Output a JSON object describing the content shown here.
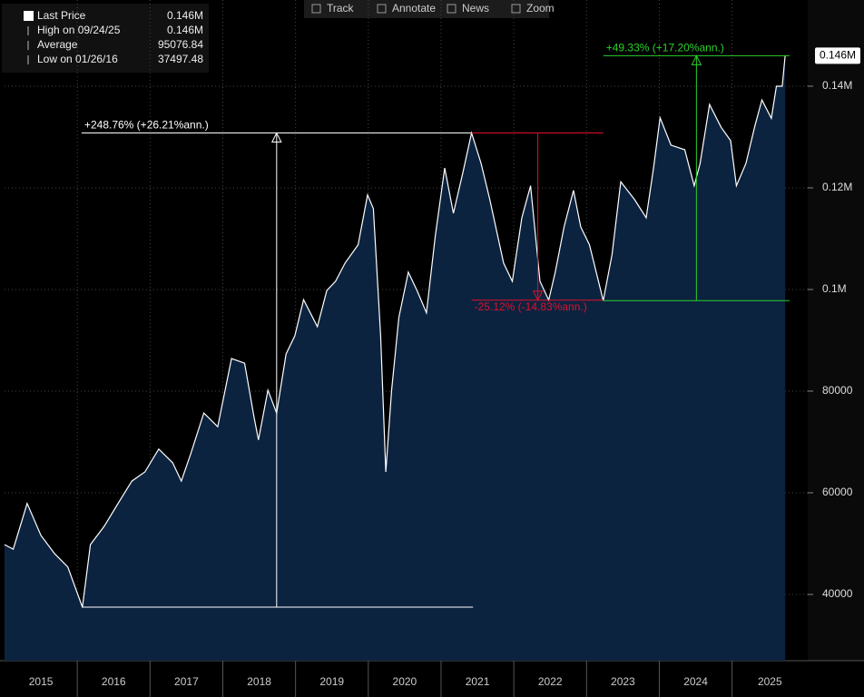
{
  "chart_data": {
    "type": "area",
    "toolbar": [
      "Track",
      "Annotate",
      "News",
      "Zoom"
    ],
    "legend": [
      {
        "label": "Last Price",
        "value": {
          "value": 146000,
          "label": "0.146M"
        }
      },
      {
        "label": "High on 09/24/25",
        "value": {
          "value": 146000,
          "label": "0.146M"
        }
      },
      {
        "label": "Average",
        "value": 95076.84
      },
      {
        "label": "Low on 01/26/16",
        "value": 37497.48
      }
    ],
    "last_price_tag": {
      "value": 146000,
      "label": "0.146M"
    },
    "line_color": "#ffffff",
    "fill_color": "#0c2340",
    "grid": true,
    "xlim": [
      2015,
      2026.04
    ],
    "xticks": [
      {
        "value": 2015,
        "label": "2015"
      },
      {
        "value": 2016,
        "label": "2016"
      },
      {
        "value": 2017,
        "label": "2017"
      },
      {
        "value": 2018,
        "label": "2018"
      },
      {
        "value": 2019,
        "label": "2019"
      },
      {
        "value": 2020,
        "label": "2020"
      },
      {
        "value": 2021,
        "label": "2021"
      },
      {
        "value": 2022,
        "label": "2022"
      },
      {
        "value": 2023,
        "label": "2023"
      },
      {
        "value": 2024,
        "label": "2024"
      },
      {
        "value": 2025,
        "label": "2025"
      }
    ],
    "ylim": [
      26960,
      156960
    ],
    "yticks": [
      40000,
      60000,
      80000,
      {
        "value": 100000,
        "label": "0.1M"
      },
      {
        "value": 120000,
        "label": "0.12M"
      },
      {
        "value": 140000,
        "label": "0.14M"
      }
    ],
    "x": [
      2015.0,
      2015.12,
      2015.31,
      2015.5,
      2015.69,
      2015.87,
      2016.07,
      2016.18,
      2016.37,
      2016.56,
      2016.75,
      2016.93,
      2017.12,
      2017.31,
      2017.43,
      2017.56,
      2017.74,
      2017.93,
      2018.12,
      2018.3,
      2018.43,
      2018.49,
      2018.62,
      2018.74,
      2018.87,
      2018.99,
      2019.11,
      2019.3,
      2019.43,
      2019.55,
      2019.68,
      2019.86,
      2019.99,
      2020.07,
      2020.17,
      2020.24,
      2020.32,
      2020.42,
      2020.55,
      2020.67,
      2020.8,
      2020.92,
      2021.05,
      2021.17,
      2021.3,
      2021.42,
      2021.55,
      2021.67,
      2021.86,
      2021.98,
      2022.11,
      2022.23,
      2022.36,
      2022.48,
      2022.57,
      2022.69,
      2022.82,
      2022.92,
      2023.04,
      2023.23,
      2023.35,
      2023.47,
      2023.66,
      2023.82,
      2023.92,
      2024.01,
      2024.16,
      2024.35,
      2024.48,
      2024.56,
      2024.69,
      2024.85,
      2024.98,
      2025.06,
      2025.19,
      2025.31,
      2025.41,
      2025.54,
      2025.61,
      2025.69,
      2025.73
    ],
    "values": [
      49800,
      48900,
      57900,
      51600,
      48000,
      45400,
      37497.48,
      49800,
      53400,
      57900,
      62300,
      64100,
      68600,
      65900,
      62300,
      67700,
      75700,
      73000,
      86400,
      85500,
      74800,
      70400,
      80200,
      75700,
      87300,
      90900,
      98000,
      92700,
      99800,
      101600,
      105200,
      108800,
      118600,
      115900,
      90900,
      64100,
      80200,
      94500,
      103400,
      99800,
      95400,
      110500,
      123900,
      115000,
      123000,
      130800,
      124800,
      117700,
      105200,
      101600,
      114100,
      120400,
      101600,
      97900,
      103400,
      112300,
      119500,
      112300,
      108800,
      97800,
      106900,
      121200,
      117700,
      114100,
      123900,
      133800,
      128400,
      127500,
      120400,
      124800,
      136400,
      131900,
      129300,
      120400,
      124800,
      132000,
      137300,
      133700,
      140000,
      140000,
      146000
    ],
    "annotations": [
      {
        "label": "+248.76% (+26.21%ann.)",
        "color": "#ffffff",
        "x": [
          2016.06,
          2021.44
        ],
        "y": [
          37497.48,
          130800
        ],
        "arrow_x": 2018.74
      },
      {
        "label": "-25.12% (-14.83%ann.)",
        "color": "#e0102a",
        "x": [
          2021.42,
          2023.23
        ],
        "y": [
          130800,
          97900
        ],
        "arrow_x": 2022.33
      },
      {
        "label": "+49.33% (+17.20%ann.)",
        "color": "#2bd12b",
        "x": [
          2023.23,
          2025.79
        ],
        "y": [
          97800,
          146000
        ],
        "arrow_x": 2024.51
      }
    ]
  }
}
